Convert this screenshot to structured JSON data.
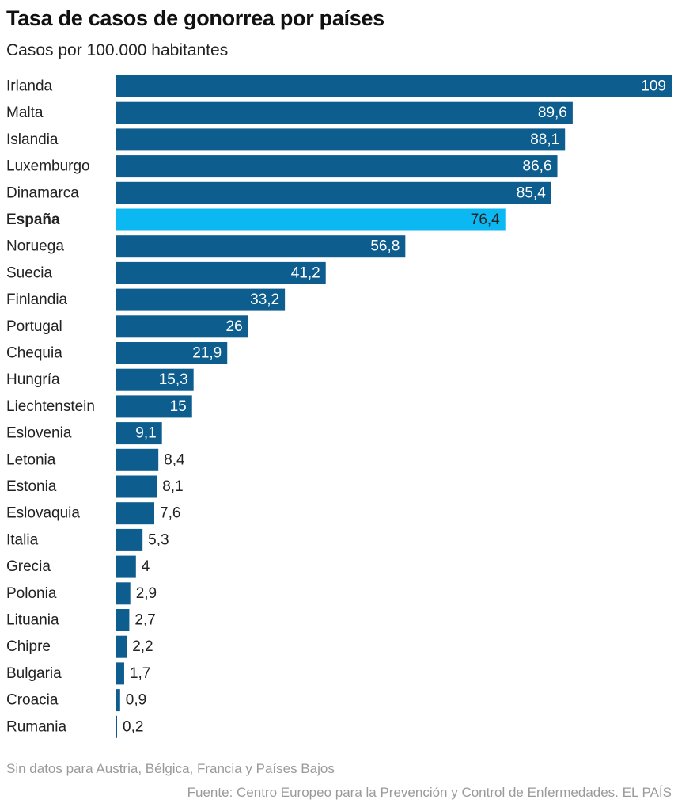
{
  "title": "Tasa de casos de gonorrea por países",
  "subtitle": "Casos por 100.000 habitantes",
  "note": "Sin datos para Austria, Bélgica, Francia y Países Bajos",
  "source": "Fuente: Centro Europeo para la Prevención y Control de Enfermedades. EL PAÍS",
  "colors": {
    "bar": "#0d5d8e",
    "highlight": "#0cb8f2",
    "label_in": "#ffffff",
    "label_out": "#222222"
  },
  "chart_data": {
    "type": "bar",
    "orientation": "horizontal",
    "highlight": "España",
    "categories": [
      "Irlanda",
      "Malta",
      "Islandia",
      "Luxemburgo",
      "Dinamarca",
      "España",
      "Noruega",
      "Suecia",
      "Finlandia",
      "Portugal",
      "Chequia",
      "Hungría",
      "Liechtenstein",
      "Eslovenia",
      "Letonia",
      "Estonia",
      "Eslovaquia",
      "Italia",
      "Grecia",
      "Polonia",
      "Lituania",
      "Chipre",
      "Bulgaria",
      "Croacia",
      "Rumania"
    ],
    "values": [
      109,
      89.6,
      88.1,
      86.6,
      85.4,
      76.4,
      56.8,
      41.2,
      33.2,
      26,
      21.9,
      15.3,
      15,
      9.1,
      8.4,
      8.1,
      7.6,
      5.3,
      4,
      2.9,
      2.7,
      2.2,
      1.7,
      0.9,
      0.2
    ],
    "value_labels": [
      "109",
      "89,6",
      "88,1",
      "86,6",
      "85,4",
      "76,4",
      "56,8",
      "41,2",
      "33,2",
      "26",
      "21,9",
      "15,3",
      "15",
      "9,1",
      "8,4",
      "8,1",
      "7,6",
      "5,3",
      "4",
      "2,9",
      "2,7",
      "2,2",
      "1,7",
      "0,9",
      "0,2"
    ],
    "xlim": [
      0,
      109
    ],
    "grid": false,
    "legend": "none"
  }
}
